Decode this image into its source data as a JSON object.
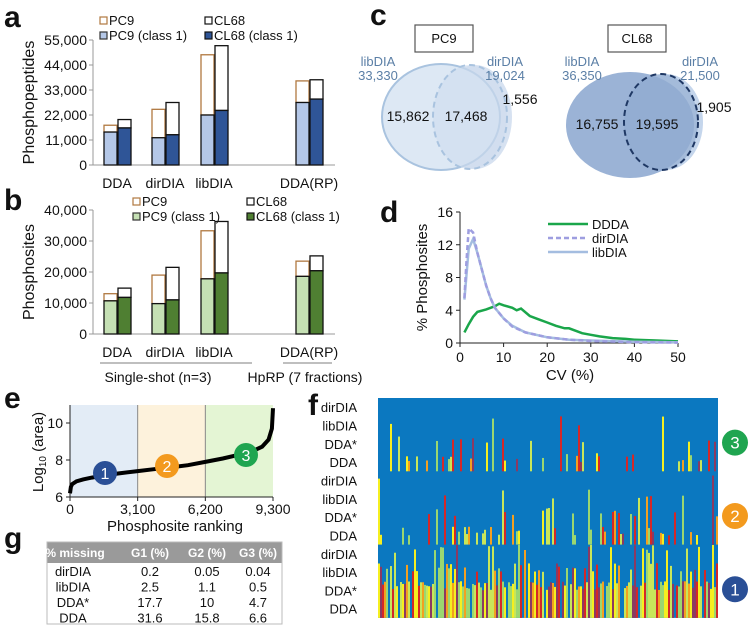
{
  "panel_labels": {
    "a": "a",
    "b": "b",
    "c": "c",
    "d": "d",
    "e": "e",
    "f": "f",
    "g": "g"
  },
  "colors": {
    "pc9_outline": "#b07840",
    "pc9_class1_a": "#b4c7e7",
    "cl68_class1_a": "#2f5597",
    "pc9_class1_b": "#c5e0b4",
    "cl68_class1_b": "#4f7f32",
    "venn_pc9": "#dde8f4",
    "venn_cl68": "#9bb3d6",
    "venn_label": "#5b7fa6",
    "ddda": "#1aa64a",
    "dirdia": "#9e9ee0",
    "libdia": "#a4bde0",
    "heat_bg": "#0b78c0",
    "group1": "#2a4f96",
    "group2": "#f39a1e",
    "group3": "#1fa550"
  },
  "chart_data": [
    {
      "panel": "a",
      "type": "bar",
      "stacked": true,
      "ylabel": "Phosphopeptides",
      "ylim": [
        0,
        55000
      ],
      "yticks": [
        "0",
        "11,000",
        "22,000",
        "33,000",
        "44,000",
        "55,000"
      ],
      "categories": [
        "DDA",
        "dirDIA",
        "libDIA",
        "DDA(RP)"
      ],
      "legend": [
        "PC9",
        "CL68",
        "PC9 (class 1)",
        "CL68 (class 1)"
      ],
      "series": [
        {
          "name": "PC9",
          "totals": [
            17500,
            24500,
            48500,
            37000
          ],
          "class1": [
            14500,
            12000,
            22000,
            27500
          ]
        },
        {
          "name": "CL68",
          "totals": [
            20000,
            27500,
            52500,
            37500
          ],
          "class1": [
            16300,
            13300,
            24000,
            29000
          ]
        }
      ]
    },
    {
      "panel": "b",
      "type": "bar",
      "stacked": true,
      "ylabel": "Phosphosites",
      "ylim": [
        0,
        40000
      ],
      "yticks": [
        "0",
        "10,000",
        "20,000",
        "30,000",
        "40,000"
      ],
      "categories": [
        "DDA",
        "dirDIA",
        "libDIA",
        "DDA(RP)"
      ],
      "legend": [
        "PC9",
        "CL68",
        "PC9 (class 1)",
        "CL68 (class 1)"
      ],
      "groups": [
        "Single-shot (n=3)",
        "HpRP (7 fractions)"
      ],
      "series": [
        {
          "name": "PC9",
          "totals": [
            13000,
            19000,
            33300,
            23500
          ],
          "class1": [
            10700,
            9800,
            17800,
            18600
          ]
        },
        {
          "name": "CL68",
          "totals": [
            14800,
            21500,
            36300,
            25200
          ],
          "class1": [
            11800,
            11000,
            19700,
            20400
          ]
        }
      ]
    },
    {
      "panel": "c",
      "type": "venn",
      "sets": [
        {
          "title": "PC9",
          "left_name": "libDIA",
          "left_total": "33,330",
          "right_name": "dirDIA",
          "right_total": "19,024",
          "left_only": "15,862",
          "overlap": "17,468",
          "right_only": "1,556"
        },
        {
          "title": "CL68",
          "left_name": "libDIA",
          "left_total": "36,350",
          "right_name": "dirDIA",
          "right_total": "21,500",
          "left_only": "16,755",
          "overlap": "19,595",
          "right_only": "1,905"
        }
      ]
    },
    {
      "panel": "d",
      "type": "line",
      "xlabel": "CV (%)",
      "ylabel": "% Phosphosites",
      "xlim": [
        0,
        50
      ],
      "ylim": [
        0,
        16
      ],
      "xticks": [
        "0",
        "10",
        "20",
        "30",
        "40",
        "50"
      ],
      "yticks": [
        "0",
        "4",
        "8",
        "12",
        "16"
      ],
      "legend_position": "top-right",
      "series": [
        {
          "name": "DDDA",
          "style": "solid",
          "x": [
            1,
            2,
            3,
            4,
            6,
            8,
            9,
            10,
            12,
            13,
            14,
            16,
            18,
            20,
            22,
            24,
            25,
            28,
            30,
            32,
            35,
            38,
            40,
            45,
            50
          ],
          "y": [
            1.3,
            2.3,
            3.2,
            3.8,
            4.1,
            4.5,
            4.8,
            4.6,
            4.3,
            4.0,
            4.2,
            3.3,
            2.9,
            2.5,
            2.1,
            1.8,
            1.8,
            1.2,
            1.0,
            0.8,
            0.6,
            0.5,
            0.4,
            0.3,
            0.2
          ]
        },
        {
          "name": "dirDIA",
          "style": "dashed",
          "x": [
            1,
            1.5,
            2,
            3,
            4,
            5,
            6,
            7,
            8,
            10,
            12,
            15,
            20,
            25,
            30,
            40,
            50
          ],
          "y": [
            5.5,
            10,
            14,
            13.5,
            11,
            9,
            7,
            5.5,
            4.3,
            3,
            2,
            1.3,
            0.7,
            0.4,
            0.25,
            0.1,
            0.05
          ]
        },
        {
          "name": "libDIA",
          "style": "solid",
          "x": [
            1,
            2,
            3,
            4,
            5,
            6,
            7,
            8,
            10,
            12,
            15,
            20,
            25,
            30,
            40,
            50
          ],
          "y": [
            5.3,
            11.5,
            12.7,
            11,
            9,
            7,
            5.5,
            4.3,
            3,
            2.1,
            1.3,
            0.7,
            0.4,
            0.3,
            0.15,
            0.1
          ]
        }
      ]
    },
    {
      "panel": "e",
      "type": "line",
      "xlabel": "Phosphosite ranking",
      "ylabel_prefix": "Log",
      "ylabel_sub": "10",
      "ylabel_suffix": " (area)",
      "xlim": [
        0,
        9300
      ],
      "ylim": [
        6,
        10.8
      ],
      "xticks": [
        "0",
        "3,100",
        "6,200",
        "9,300"
      ],
      "yticks": [
        "6",
        "8",
        "10"
      ],
      "regions": [
        {
          "label": "1",
          "from": 0,
          "to": 3100,
          "color": "#e3ecf6"
        },
        {
          "label": "2",
          "from": 3100,
          "to": 6200,
          "color": "#fdf2dc"
        },
        {
          "label": "3",
          "from": 6200,
          "to": 9300,
          "color": "#e4f5d4"
        }
      ],
      "x": [
        0,
        40,
        100,
        300,
        600,
        1000,
        1500,
        2200,
        3100,
        3800,
        4600,
        5400,
        6200,
        7000,
        7800,
        8400,
        8800,
        9100,
        9250,
        9300
      ],
      "y": [
        6.2,
        6.55,
        6.7,
        6.85,
        6.95,
        7.05,
        7.15,
        7.27,
        7.4,
        7.5,
        7.6,
        7.72,
        7.9,
        8.08,
        8.3,
        8.5,
        8.72,
        9.1,
        9.7,
        10.8
      ]
    },
    {
      "panel": "f",
      "type": "heatmap",
      "groups": [
        {
          "badge": "3",
          "rows": [
            "dirDIA",
            "libDIA",
            "DDA*",
            "DDA"
          ]
        },
        {
          "badge": "2",
          "rows": [
            "dirDIA",
            "libDIA",
            "DDA*",
            "DDA"
          ]
        },
        {
          "badge": "1",
          "rows": [
            "dirDIA",
            "libDIA",
            "DDA*",
            "DDA"
          ]
        }
      ],
      "palette": [
        "#9bd770",
        "#c8e65a",
        "#d42828",
        "#8b3a62",
        "#f5ef20",
        "#f3a020"
      ]
    },
    {
      "panel": "g",
      "type": "table",
      "columns": [
        "% missing",
        "G1 (%)",
        "G2 (%)",
        "G3 (%)"
      ],
      "rows": [
        [
          "dirDIA",
          "0.2",
          "0.05",
          "0.04"
        ],
        [
          "libDIA",
          "2.5",
          "1.1",
          "0.5"
        ],
        [
          "DDA*",
          "17.7",
          "10",
          "4.7"
        ],
        [
          "DDA",
          "31.6",
          "15.8",
          "6.6"
        ]
      ]
    }
  ]
}
